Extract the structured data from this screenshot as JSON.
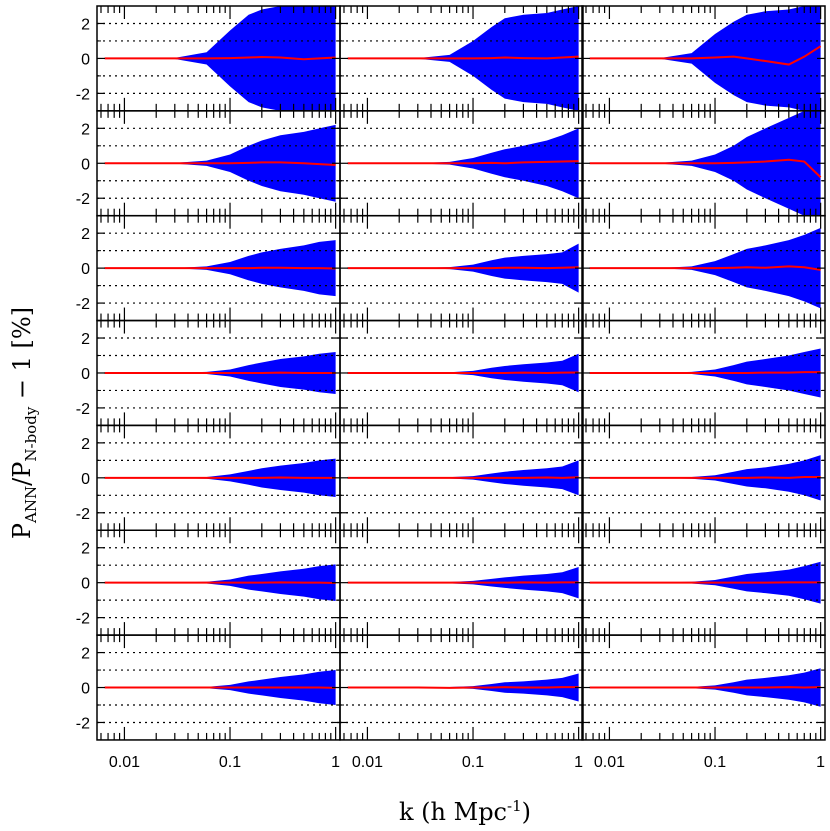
{
  "chart_data": {
    "type": "area",
    "layout": {
      "rows": 7,
      "cols": 3
    },
    "xscale": "log",
    "xlim": [
      0.0055,
      1.1
    ],
    "ylim": [
      -3,
      3
    ],
    "xticks": [
      {
        "value": 0.01,
        "label": "0.01"
      },
      {
        "value": 0.1,
        "label": "0.1"
      },
      {
        "value": 1,
        "label": "1"
      }
    ],
    "yticks": [
      {
        "value": 2,
        "label": "2"
      },
      {
        "value": 0,
        "label": "0"
      },
      {
        "value": -2,
        "label": "-2"
      }
    ],
    "reference_lines_y": [
      -2,
      -1,
      1,
      2
    ],
    "band_color": "#0000ff",
    "line_color": "#ff0000",
    "xlabel": {
      "prefix": "k  (h  Mpc",
      "superscript": "-1",
      "suffix": ")"
    },
    "ylabel": {
      "p1": "P",
      "sub1": "ANN",
      "mid": "/P",
      "sub2": "N-body",
      "suffix": "  −  1  [%]"
    },
    "panels": [
      {
        "row": 0,
        "col": 0,
        "k": [
          0.0065,
          0.03,
          0.06,
          0.1,
          0.15,
          0.2,
          0.3,
          0.5,
          0.7,
          1.0
        ],
        "upper": [
          0.0,
          0.03,
          0.35,
          1.6,
          2.5,
          2.8,
          3.0,
          3.0,
          3.0,
          3.0
        ],
        "lower": [
          0.0,
          -0.03,
          -0.35,
          -1.6,
          -2.5,
          -2.8,
          -3.0,
          -3.0,
          -3.0,
          -3.0
        ],
        "center": [
          0.0,
          0.0,
          0.0,
          0.02,
          0.05,
          0.08,
          0.05,
          -0.05,
          0.0,
          0.05
        ]
      },
      {
        "row": 0,
        "col": 1,
        "k": [
          0.0065,
          0.03,
          0.06,
          0.1,
          0.15,
          0.2,
          0.3,
          0.5,
          0.7,
          1.0
        ],
        "upper": [
          0.0,
          0.02,
          0.2,
          1.0,
          1.8,
          2.3,
          2.5,
          2.6,
          2.8,
          3.0
        ],
        "lower": [
          0.0,
          -0.02,
          -0.2,
          -1.0,
          -1.8,
          -2.3,
          -2.5,
          -2.6,
          -2.8,
          -3.0
        ],
        "center": [
          0.0,
          0.0,
          0.0,
          0.0,
          0.02,
          0.05,
          0.02,
          0.0,
          0.05,
          0.1
        ]
      },
      {
        "row": 0,
        "col": 2,
        "k": [
          0.0065,
          0.03,
          0.06,
          0.1,
          0.15,
          0.2,
          0.3,
          0.5,
          0.7,
          1.0
        ],
        "upper": [
          0.0,
          0.02,
          0.3,
          1.4,
          2.1,
          2.5,
          2.7,
          2.8,
          3.0,
          3.0
        ],
        "lower": [
          0.0,
          -0.02,
          -0.3,
          -1.4,
          -2.1,
          -2.5,
          -2.7,
          -2.8,
          -3.0,
          -3.0
        ],
        "center": [
          0.0,
          0.0,
          0.0,
          0.05,
          0.1,
          0.0,
          -0.15,
          -0.35,
          0.1,
          0.7
        ]
      },
      {
        "row": 1,
        "col": 0,
        "k": [
          0.0065,
          0.03,
          0.06,
          0.1,
          0.15,
          0.2,
          0.3,
          0.5,
          0.7,
          1.0
        ],
        "upper": [
          0.0,
          0.02,
          0.15,
          0.5,
          1.0,
          1.3,
          1.6,
          1.8,
          2.0,
          2.2
        ],
        "lower": [
          0.0,
          -0.02,
          -0.15,
          -0.5,
          -1.0,
          -1.3,
          -1.6,
          -1.8,
          -2.0,
          -2.2
        ],
        "center": [
          0.0,
          0.0,
          0.0,
          0.0,
          0.02,
          0.05,
          0.05,
          0.0,
          -0.05,
          -0.1
        ]
      },
      {
        "row": 1,
        "col": 1,
        "k": [
          0.0065,
          0.03,
          0.06,
          0.1,
          0.15,
          0.2,
          0.3,
          0.5,
          0.7,
          1.0
        ],
        "upper": [
          0.0,
          0.01,
          0.08,
          0.3,
          0.6,
          0.8,
          1.0,
          1.3,
          1.6,
          2.0
        ],
        "lower": [
          0.0,
          -0.01,
          -0.08,
          -0.3,
          -0.6,
          -0.8,
          -1.0,
          -1.3,
          -1.6,
          -2.0
        ],
        "center": [
          0.0,
          0.0,
          0.0,
          0.0,
          0.02,
          0.0,
          0.05,
          0.08,
          0.1,
          0.12
        ]
      },
      {
        "row": 1,
        "col": 2,
        "k": [
          0.0065,
          0.03,
          0.06,
          0.1,
          0.15,
          0.2,
          0.3,
          0.5,
          0.7,
          1.0
        ],
        "upper": [
          0.0,
          0.02,
          0.15,
          0.5,
          1.0,
          1.5,
          2.0,
          2.6,
          3.0,
          3.0
        ],
        "lower": [
          0.0,
          -0.02,
          -0.15,
          -0.5,
          -1.0,
          -1.5,
          -2.0,
          -2.6,
          -3.0,
          -3.0
        ],
        "center": [
          0.0,
          0.0,
          0.0,
          0.0,
          0.02,
          0.05,
          0.1,
          0.2,
          0.1,
          -0.8
        ]
      },
      {
        "row": 2,
        "col": 0,
        "k": [
          0.0065,
          0.03,
          0.06,
          0.1,
          0.15,
          0.2,
          0.3,
          0.5,
          0.7,
          1.0
        ],
        "upper": [
          0.0,
          0.01,
          0.1,
          0.35,
          0.7,
          0.9,
          1.1,
          1.3,
          1.5,
          1.6
        ],
        "lower": [
          0.0,
          -0.01,
          -0.1,
          -0.35,
          -0.7,
          -0.9,
          -1.1,
          -1.3,
          -1.5,
          -1.6
        ],
        "center": [
          0.0,
          0.0,
          0.0,
          0.0,
          0.0,
          0.02,
          0.02,
          0.0,
          0.0,
          -0.02
        ]
      },
      {
        "row": 2,
        "col": 1,
        "k": [
          0.0065,
          0.03,
          0.06,
          0.1,
          0.15,
          0.2,
          0.3,
          0.5,
          0.7,
          1.0
        ],
        "upper": [
          0.0,
          0.01,
          0.06,
          0.2,
          0.45,
          0.6,
          0.7,
          0.8,
          0.9,
          1.4
        ],
        "lower": [
          0.0,
          -0.01,
          -0.06,
          -0.2,
          -0.45,
          -0.6,
          -0.7,
          -0.8,
          -0.9,
          -1.4
        ],
        "center": [
          0.0,
          0.0,
          0.0,
          0.0,
          0.0,
          0.02,
          0.02,
          0.0,
          0.02,
          0.05
        ]
      },
      {
        "row": 2,
        "col": 2,
        "k": [
          0.0065,
          0.03,
          0.06,
          0.1,
          0.15,
          0.2,
          0.3,
          0.5,
          0.7,
          1.0
        ],
        "upper": [
          0.0,
          0.01,
          0.1,
          0.4,
          0.8,
          1.1,
          1.3,
          1.6,
          1.9,
          2.3
        ],
        "lower": [
          0.0,
          -0.01,
          -0.1,
          -0.4,
          -0.8,
          -1.1,
          -1.3,
          -1.6,
          -1.9,
          -2.3
        ],
        "center": [
          0.0,
          0.0,
          0.0,
          0.0,
          0.02,
          0.05,
          0.02,
          0.1,
          0.05,
          -0.1
        ]
      },
      {
        "row": 3,
        "col": 0,
        "k": [
          0.0065,
          0.03,
          0.06,
          0.1,
          0.15,
          0.2,
          0.3,
          0.5,
          0.7,
          1.0
        ],
        "upper": [
          0.0,
          0.01,
          0.06,
          0.2,
          0.45,
          0.6,
          0.8,
          0.95,
          1.1,
          1.2
        ],
        "lower": [
          0.0,
          -0.01,
          -0.06,
          -0.2,
          -0.45,
          -0.6,
          -0.8,
          -0.95,
          -1.1,
          -1.2
        ],
        "center": [
          0.0,
          0.0,
          0.0,
          0.0,
          0.0,
          0.0,
          0.02,
          0.0,
          0.0,
          0.0
        ]
      },
      {
        "row": 3,
        "col": 1,
        "k": [
          0.0065,
          0.03,
          0.06,
          0.1,
          0.15,
          0.2,
          0.3,
          0.5,
          0.7,
          1.0
        ],
        "upper": [
          0.0,
          0.01,
          0.04,
          0.12,
          0.3,
          0.4,
          0.5,
          0.6,
          0.7,
          1.1
        ],
        "lower": [
          0.0,
          -0.01,
          -0.04,
          -0.12,
          -0.3,
          -0.4,
          -0.5,
          -0.6,
          -0.7,
          -1.1
        ],
        "center": [
          0.0,
          0.0,
          0.0,
          0.0,
          0.0,
          0.0,
          0.02,
          0.0,
          0.02,
          0.03
        ]
      },
      {
        "row": 3,
        "col": 2,
        "k": [
          0.0065,
          0.03,
          0.06,
          0.1,
          0.15,
          0.2,
          0.3,
          0.5,
          0.7,
          1.0
        ],
        "upper": [
          0.0,
          0.01,
          0.06,
          0.2,
          0.45,
          0.65,
          0.8,
          1.0,
          1.2,
          1.4
        ],
        "lower": [
          0.0,
          -0.01,
          -0.06,
          -0.2,
          -0.45,
          -0.65,
          -0.8,
          -1.0,
          -1.2,
          -1.4
        ],
        "center": [
          0.0,
          0.0,
          0.0,
          0.0,
          0.0,
          0.0,
          0.02,
          0.02,
          0.05,
          0.05
        ]
      },
      {
        "row": 4,
        "col": 0,
        "k": [
          0.0065,
          0.03,
          0.06,
          0.1,
          0.15,
          0.2,
          0.3,
          0.5,
          0.7,
          1.0
        ],
        "upper": [
          0.0,
          0.01,
          0.05,
          0.2,
          0.4,
          0.55,
          0.7,
          0.85,
          1.0,
          1.1
        ],
        "lower": [
          0.0,
          -0.01,
          -0.05,
          -0.2,
          -0.4,
          -0.55,
          -0.7,
          -0.85,
          -1.0,
          -1.1
        ],
        "center": [
          0.0,
          0.0,
          0.0,
          0.0,
          0.0,
          0.0,
          0.02,
          0.0,
          0.0,
          0.0
        ]
      },
      {
        "row": 4,
        "col": 1,
        "k": [
          0.0065,
          0.03,
          0.06,
          0.1,
          0.15,
          0.2,
          0.3,
          0.5,
          0.7,
          1.0
        ],
        "upper": [
          0.0,
          0.01,
          0.04,
          0.1,
          0.25,
          0.35,
          0.45,
          0.55,
          0.65,
          1.0
        ],
        "lower": [
          0.0,
          -0.01,
          -0.04,
          -0.1,
          -0.25,
          -0.35,
          -0.45,
          -0.55,
          -0.65,
          -1.0
        ],
        "center": [
          0.0,
          0.0,
          0.0,
          0.0,
          0.0,
          0.0,
          0.0,
          0.02,
          0.0,
          0.03
        ]
      },
      {
        "row": 4,
        "col": 2,
        "k": [
          0.0065,
          0.03,
          0.06,
          0.1,
          0.15,
          0.2,
          0.3,
          0.5,
          0.7,
          1.0
        ],
        "upper": [
          0.0,
          0.01,
          0.05,
          0.15,
          0.35,
          0.5,
          0.6,
          0.8,
          1.0,
          1.3
        ],
        "lower": [
          0.0,
          -0.01,
          -0.05,
          -0.15,
          -0.35,
          -0.5,
          -0.6,
          -0.8,
          -1.0,
          -1.3
        ],
        "center": [
          0.0,
          0.0,
          0.0,
          0.0,
          0.0,
          0.0,
          0.02,
          0.0,
          0.05,
          0.05
        ]
      },
      {
        "row": 5,
        "col": 0,
        "k": [
          0.0065,
          0.03,
          0.06,
          0.1,
          0.15,
          0.2,
          0.3,
          0.5,
          0.7,
          1.0
        ],
        "upper": [
          0.0,
          0.01,
          0.05,
          0.18,
          0.4,
          0.5,
          0.65,
          0.8,
          0.95,
          1.05
        ],
        "lower": [
          0.0,
          -0.01,
          -0.05,
          -0.18,
          -0.4,
          -0.5,
          -0.65,
          -0.8,
          -0.95,
          -1.05
        ],
        "center": [
          0.0,
          0.0,
          0.0,
          0.0,
          0.0,
          0.0,
          0.02,
          0.0,
          0.0,
          -0.02
        ]
      },
      {
        "row": 5,
        "col": 1,
        "k": [
          0.0065,
          0.03,
          0.06,
          0.1,
          0.15,
          0.2,
          0.3,
          0.5,
          0.7,
          1.0
        ],
        "upper": [
          0.0,
          0.01,
          0.04,
          0.1,
          0.22,
          0.3,
          0.4,
          0.5,
          0.6,
          0.9
        ],
        "lower": [
          0.0,
          -0.01,
          -0.04,
          -0.1,
          -0.22,
          -0.3,
          -0.4,
          -0.5,
          -0.6,
          -0.9
        ],
        "center": [
          0.0,
          0.0,
          0.0,
          0.0,
          0.0,
          0.0,
          0.02,
          0.0,
          0.02,
          0.02
        ]
      },
      {
        "row": 5,
        "col": 2,
        "k": [
          0.0065,
          0.03,
          0.06,
          0.1,
          0.15,
          0.2,
          0.3,
          0.5,
          0.7,
          1.0
        ],
        "upper": [
          0.0,
          0.01,
          0.05,
          0.15,
          0.35,
          0.5,
          0.6,
          0.75,
          0.95,
          1.2
        ],
        "lower": [
          0.0,
          -0.01,
          -0.05,
          -0.15,
          -0.35,
          -0.5,
          -0.6,
          -0.75,
          -0.95,
          -1.2
        ],
        "center": [
          0.0,
          0.0,
          0.0,
          0.0,
          0.0,
          0.0,
          0.0,
          0.02,
          0.02,
          0.02
        ]
      },
      {
        "row": 6,
        "col": 0,
        "k": [
          0.0065,
          0.03,
          0.06,
          0.1,
          0.15,
          0.2,
          0.3,
          0.5,
          0.7,
          1.0
        ],
        "upper": [
          0.0,
          0.01,
          0.04,
          0.15,
          0.35,
          0.45,
          0.6,
          0.75,
          0.9,
          1.0
        ],
        "lower": [
          0.0,
          -0.01,
          -0.04,
          -0.15,
          -0.35,
          -0.45,
          -0.6,
          -0.75,
          -0.9,
          -1.0
        ],
        "center": [
          0.0,
          0.0,
          0.0,
          0.0,
          0.0,
          0.0,
          0.0,
          0.0,
          0.0,
          -0.02
        ]
      },
      {
        "row": 6,
        "col": 1,
        "k": [
          0.0065,
          0.03,
          0.06,
          0.1,
          0.15,
          0.2,
          0.3,
          0.5,
          0.7,
          1.0
        ],
        "upper": [
          0.0,
          0.01,
          0.03,
          0.08,
          0.2,
          0.3,
          0.35,
          0.45,
          0.55,
          0.8
        ],
        "lower": [
          0.0,
          -0.01,
          -0.03,
          -0.08,
          -0.2,
          -0.3,
          -0.35,
          -0.45,
          -0.55,
          -0.8
        ],
        "center": [
          0.0,
          0.0,
          -0.02,
          0.0,
          0.0,
          0.02,
          0.0,
          0.0,
          0.02,
          0.02
        ]
      },
      {
        "row": 6,
        "col": 2,
        "k": [
          0.0065,
          0.03,
          0.06,
          0.1,
          0.15,
          0.2,
          0.3,
          0.5,
          0.7,
          1.0
        ],
        "upper": [
          0.0,
          0.01,
          0.04,
          0.12,
          0.3,
          0.45,
          0.55,
          0.7,
          0.85,
          1.1
        ],
        "lower": [
          0.0,
          -0.01,
          -0.04,
          -0.12,
          -0.3,
          -0.45,
          -0.55,
          -0.7,
          -0.85,
          -1.1
        ],
        "center": [
          0.0,
          0.0,
          0.0,
          0.0,
          0.0,
          0.0,
          0.0,
          0.02,
          0.0,
          0.02
        ]
      }
    ]
  }
}
